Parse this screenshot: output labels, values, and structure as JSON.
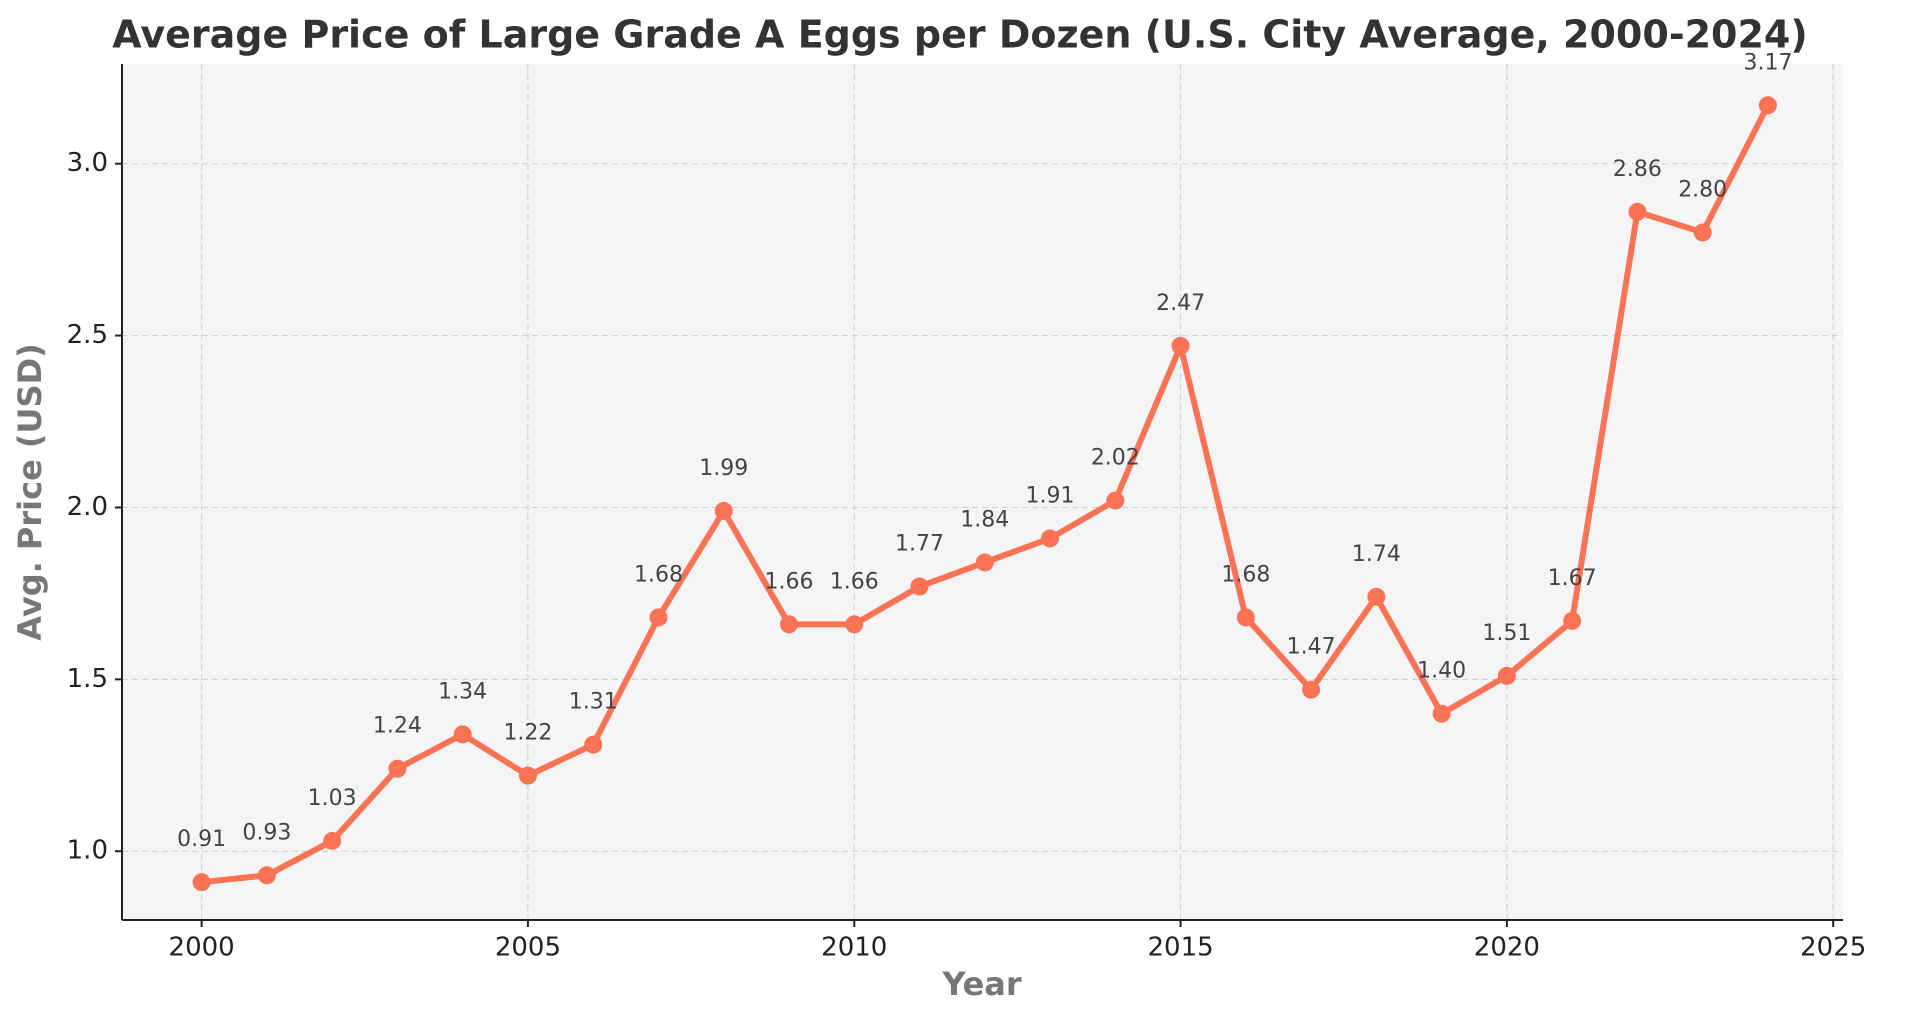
{
  "chart_data": {
    "type": "line",
    "title": "Average Price of Large Grade A Eggs per Dozen (U.S. City Average, 2000-2024)",
    "x_label": "Year",
    "y_label": "Avg. Price (USD)",
    "x": [
      2000,
      2001,
      2002,
      2003,
      2004,
      2005,
      2006,
      2007,
      2008,
      2009,
      2010,
      2011,
      2012,
      2013,
      2014,
      2015,
      2016,
      2017,
      2018,
      2019,
      2020,
      2021,
      2022,
      2023,
      2024
    ],
    "series": [
      {
        "color": "#fa7355",
        "values": [
          0.91,
          0.93,
          1.03,
          1.24,
          1.34,
          1.22,
          1.31,
          1.68,
          1.99,
          1.66,
          1.66,
          1.77,
          1.84,
          1.91,
          2.02,
          2.47,
          1.68,
          1.47,
          1.74,
          1.4,
          1.51,
          1.67,
          2.86,
          2.8,
          3.17
        ],
        "value_labels": [
          "0.91",
          "0.93",
          "1.03",
          "1.24",
          "1.34",
          "1.22",
          "1.31",
          "1.68",
          "1.99",
          "1.66",
          "1.66",
          "1.77",
          "1.84",
          "1.91",
          "2.02",
          "2.47",
          "1.68",
          "1.47",
          "1.74",
          "1.40",
          "1.51",
          "1.67",
          "2.86",
          "2.80",
          "3.17"
        ]
      }
    ],
    "xlim": [
      1998.78,
      2025.15
    ],
    "xticks": [
      2000,
      2005,
      2010,
      2015,
      2020,
      2025
    ],
    "ylim": [
      0.8,
      3.29
    ],
    "yticks": [
      {
        "value": 1,
        "label": "1.0"
      },
      1.5,
      {
        "value": 2,
        "label": "2.0"
      },
      2.5,
      {
        "value": 3,
        "label": "3.0"
      }
    ],
    "grid": true
  }
}
